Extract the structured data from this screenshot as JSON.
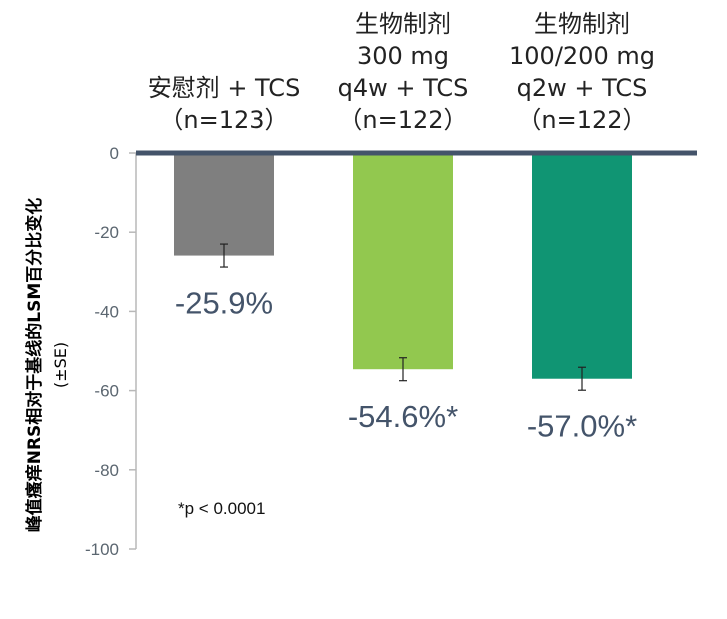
{
  "colors": {
    "placebo": "#7f7f7f",
    "q4w": "#92c84f",
    "q2w": "#109573",
    "zero_line": "#44546a",
    "axis": "#b8b8b8",
    "data_label": "#44546a"
  },
  "footnote": "*p < 0.0001",
  "chart_data": {
    "type": "bar",
    "ylabel": "峰值瘙痒NRS相对于基线的LSM百分比变化",
    "ylabel_sub": "(±SE)",
    "ylim": [
      -100,
      0
    ],
    "yticks": [
      0,
      -20,
      -40,
      -60,
      -80,
      -100
    ],
    "yticks_labels": [
      "0",
      "-20",
      "-40",
      "-60",
      "-80",
      "-100"
    ],
    "grid": false,
    "categories": [
      {
        "lines": [
          "安慰剂 + TCS",
          "（n=123）"
        ]
      },
      {
        "lines": [
          "生物制剂",
          "300 mg",
          "q4w + TCS",
          "（n=122）"
        ]
      },
      {
        "lines": [
          "生物制剂",
          "100/200 mg",
          "q2w + TCS",
          "（n=122）"
        ]
      }
    ],
    "values": [
      -25.9,
      -54.6,
      -57.0
    ],
    "errors": [
      2.9,
      2.9,
      2.9
    ],
    "data_labels": [
      "-25.9%",
      "-54.6%*",
      "-57.0%*"
    ]
  }
}
